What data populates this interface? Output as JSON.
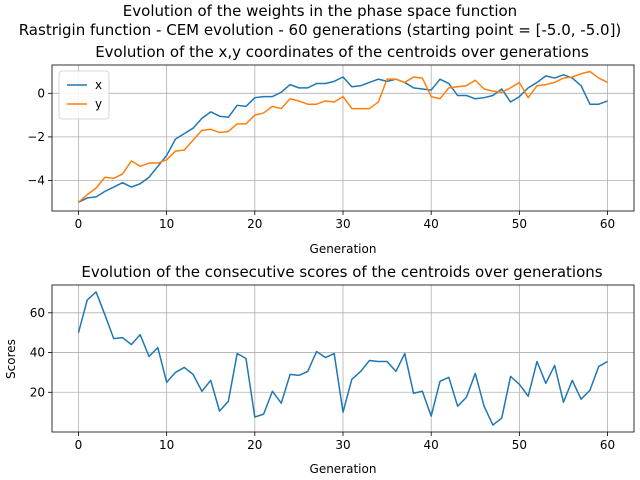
{
  "figure": {
    "suptitle_line1": "Evolution of the weights in the phase space  function",
    "suptitle_line2": "Rastrigin function - CEM evolution - 60 generations (starting point = [-5.0, -5.0])"
  },
  "chart_data": [
    {
      "type": "line",
      "title": "Evolution of the x,y coordinates of the centroids over generations",
      "xlabel": "Generation",
      "ylabel": "",
      "xlim": [
        -3,
        63
      ],
      "ylim": [
        -5.4,
        1.3
      ],
      "xticks": [
        0,
        10,
        20,
        30,
        40,
        50,
        60
      ],
      "yticks": [
        -4,
        -2,
        0
      ],
      "grid": true,
      "legend": "top-left",
      "x": [
        0,
        1,
        2,
        3,
        4,
        5,
        6,
        7,
        8,
        9,
        10,
        11,
        12,
        13,
        14,
        15,
        16,
        17,
        18,
        19,
        20,
        21,
        22,
        23,
        24,
        25,
        26,
        27,
        28,
        29,
        30,
        31,
        32,
        33,
        34,
        35,
        36,
        37,
        38,
        39,
        40,
        41,
        42,
        43,
        44,
        45,
        46,
        47,
        48,
        49,
        50,
        51,
        52,
        53,
        54,
        55,
        56,
        57,
        58,
        59,
        60
      ],
      "series": [
        {
          "name": "x",
          "color": "#1f77b4",
          "values": [
            -5.0,
            -4.8,
            -4.75,
            -4.5,
            -4.3,
            -4.1,
            -4.3,
            -4.15,
            -3.85,
            -3.35,
            -2.85,
            -2.1,
            -1.85,
            -1.6,
            -1.15,
            -0.85,
            -1.05,
            -1.1,
            -0.55,
            -0.6,
            -0.2,
            -0.15,
            -0.15,
            0.05,
            0.4,
            0.25,
            0.25,
            0.45,
            0.45,
            0.55,
            0.75,
            0.3,
            0.35,
            0.5,
            0.65,
            0.55,
            0.65,
            0.5,
            0.25,
            0.2,
            0.15,
            0.65,
            0.45,
            -0.1,
            -0.1,
            -0.25,
            -0.2,
            -0.1,
            0.2,
            -0.4,
            -0.15,
            0.25,
            0.5,
            0.8,
            0.7,
            0.85,
            0.7,
            0.35,
            -0.5,
            -0.5,
            -0.35
          ]
        },
        {
          "name": "y",
          "color": "#ff7f0e",
          "values": [
            -5.0,
            -4.65,
            -4.35,
            -3.85,
            -3.9,
            -3.7,
            -3.1,
            -3.35,
            -3.2,
            -3.2,
            -3.05,
            -2.65,
            -2.6,
            -2.15,
            -1.7,
            -1.65,
            -1.8,
            -1.75,
            -1.4,
            -1.4,
            -1.0,
            -0.9,
            -0.6,
            -0.7,
            -0.25,
            -0.35,
            -0.5,
            -0.5,
            -0.35,
            -0.4,
            -0.15,
            -0.7,
            -0.7,
            -0.7,
            -0.4,
            0.65,
            0.65,
            0.5,
            0.75,
            0.7,
            -0.15,
            -0.25,
            0.25,
            0.3,
            0.35,
            0.6,
            0.2,
            0.1,
            0.05,
            0.25,
            0.5,
            -0.2,
            0.35,
            0.4,
            0.5,
            0.7,
            0.75,
            0.9,
            1.0,
            0.7,
            0.5
          ]
        }
      ]
    },
    {
      "type": "line",
      "title": "Evolution of the consecutive scores of the centroids over generations",
      "xlabel": "Generation",
      "ylabel": "Scores",
      "xlim": [
        -3,
        63
      ],
      "ylim": [
        0,
        74
      ],
      "xticks": [
        0,
        10,
        20,
        30,
        40,
        50,
        60
      ],
      "yticks": [
        20,
        40,
        60
      ],
      "grid": true,
      "x": [
        0,
        1,
        2,
        3,
        4,
        5,
        6,
        7,
        8,
        9,
        10,
        11,
        12,
        13,
        14,
        15,
        16,
        17,
        18,
        19,
        20,
        21,
        22,
        23,
        24,
        25,
        26,
        27,
        28,
        29,
        30,
        31,
        32,
        33,
        34,
        35,
        36,
        37,
        38,
        39,
        40,
        41,
        42,
        43,
        44,
        45,
        46,
        47,
        48,
        49,
        50,
        51,
        52,
        53,
        54,
        55,
        56,
        57,
        58,
        59,
        60
      ],
      "series": [
        {
          "color": "#1f77b4",
          "values": [
            50,
            66.5,
            70.5,
            59,
            47,
            47.5,
            44,
            49,
            38,
            42.5,
            25,
            30,
            32.5,
            29,
            20.5,
            26,
            10.5,
            15.5,
            39.5,
            37,
            7.5,
            9,
            20.5,
            14.5,
            29,
            28.5,
            30.5,
            40.5,
            37.5,
            39.5,
            10,
            26.5,
            30.5,
            36,
            35.5,
            35.5,
            30.5,
            39.5,
            19.5,
            20.5,
            8,
            25.5,
            27.5,
            13,
            17.5,
            29.5,
            13,
            3.5,
            7,
            28,
            24,
            18,
            35.5,
            24.5,
            33.5,
            15,
            26,
            16.5,
            21,
            33,
            35.5
          ]
        }
      ]
    }
  ]
}
